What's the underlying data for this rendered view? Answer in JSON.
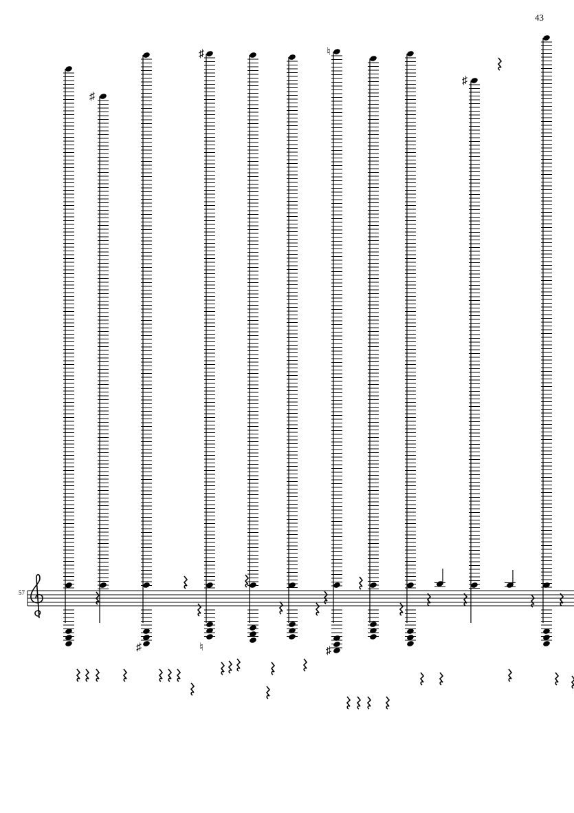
{
  "page_number": "43",
  "measure_number": "57"
}
